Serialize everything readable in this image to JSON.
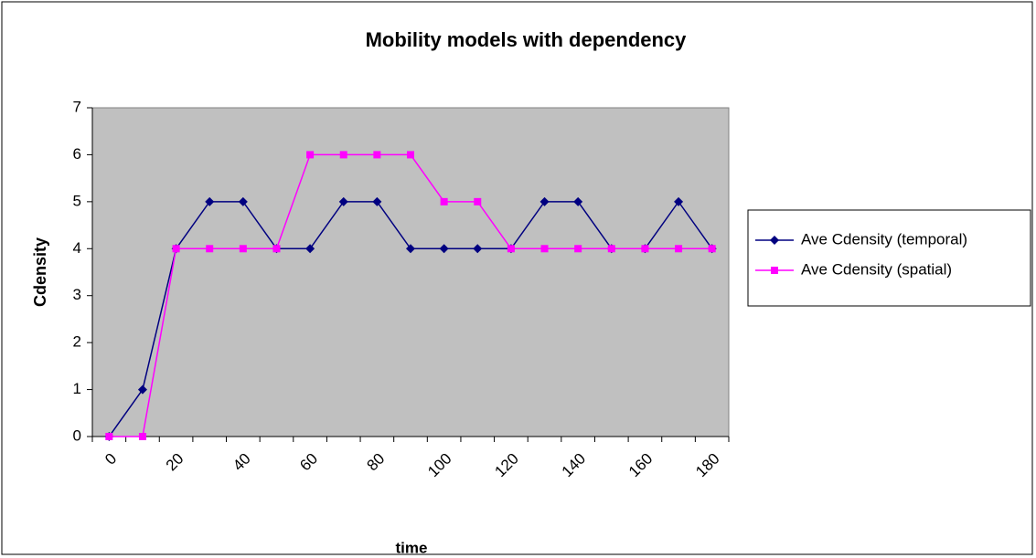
{
  "chart_data": {
    "type": "line",
    "title": "Mobility models with dependency",
    "x_label": "time",
    "y_label": "Cdensity",
    "categories": [
      "0",
      null,
      "20",
      null,
      "40",
      null,
      "60",
      null,
      "80",
      null,
      "100",
      null,
      "120",
      null,
      "140",
      null,
      "160",
      null,
      "180"
    ],
    "series": [
      {
        "name": "Ave Cdensity (temporal)",
        "color": "#000080",
        "marker": "diamond",
        "values": [
          0,
          1,
          4,
          5,
          5,
          4,
          4,
          5,
          5,
          4,
          4,
          4,
          4,
          5,
          5,
          4,
          4,
          5,
          4
        ]
      },
      {
        "name": "Ave Cdensity (spatial)",
        "color": "#ff00ff",
        "marker": "square",
        "values": [
          0,
          0,
          4,
          4,
          4,
          4,
          6,
          6,
          6,
          6,
          5,
          5,
          4,
          4,
          4,
          4,
          4,
          4,
          4
        ]
      }
    ],
    "ylim": [
      0,
      7
    ],
    "yticks": [
      0,
      1,
      2,
      3,
      4,
      5,
      6,
      7
    ],
    "legend": "right",
    "plot_background": "#c0c0c0"
  }
}
